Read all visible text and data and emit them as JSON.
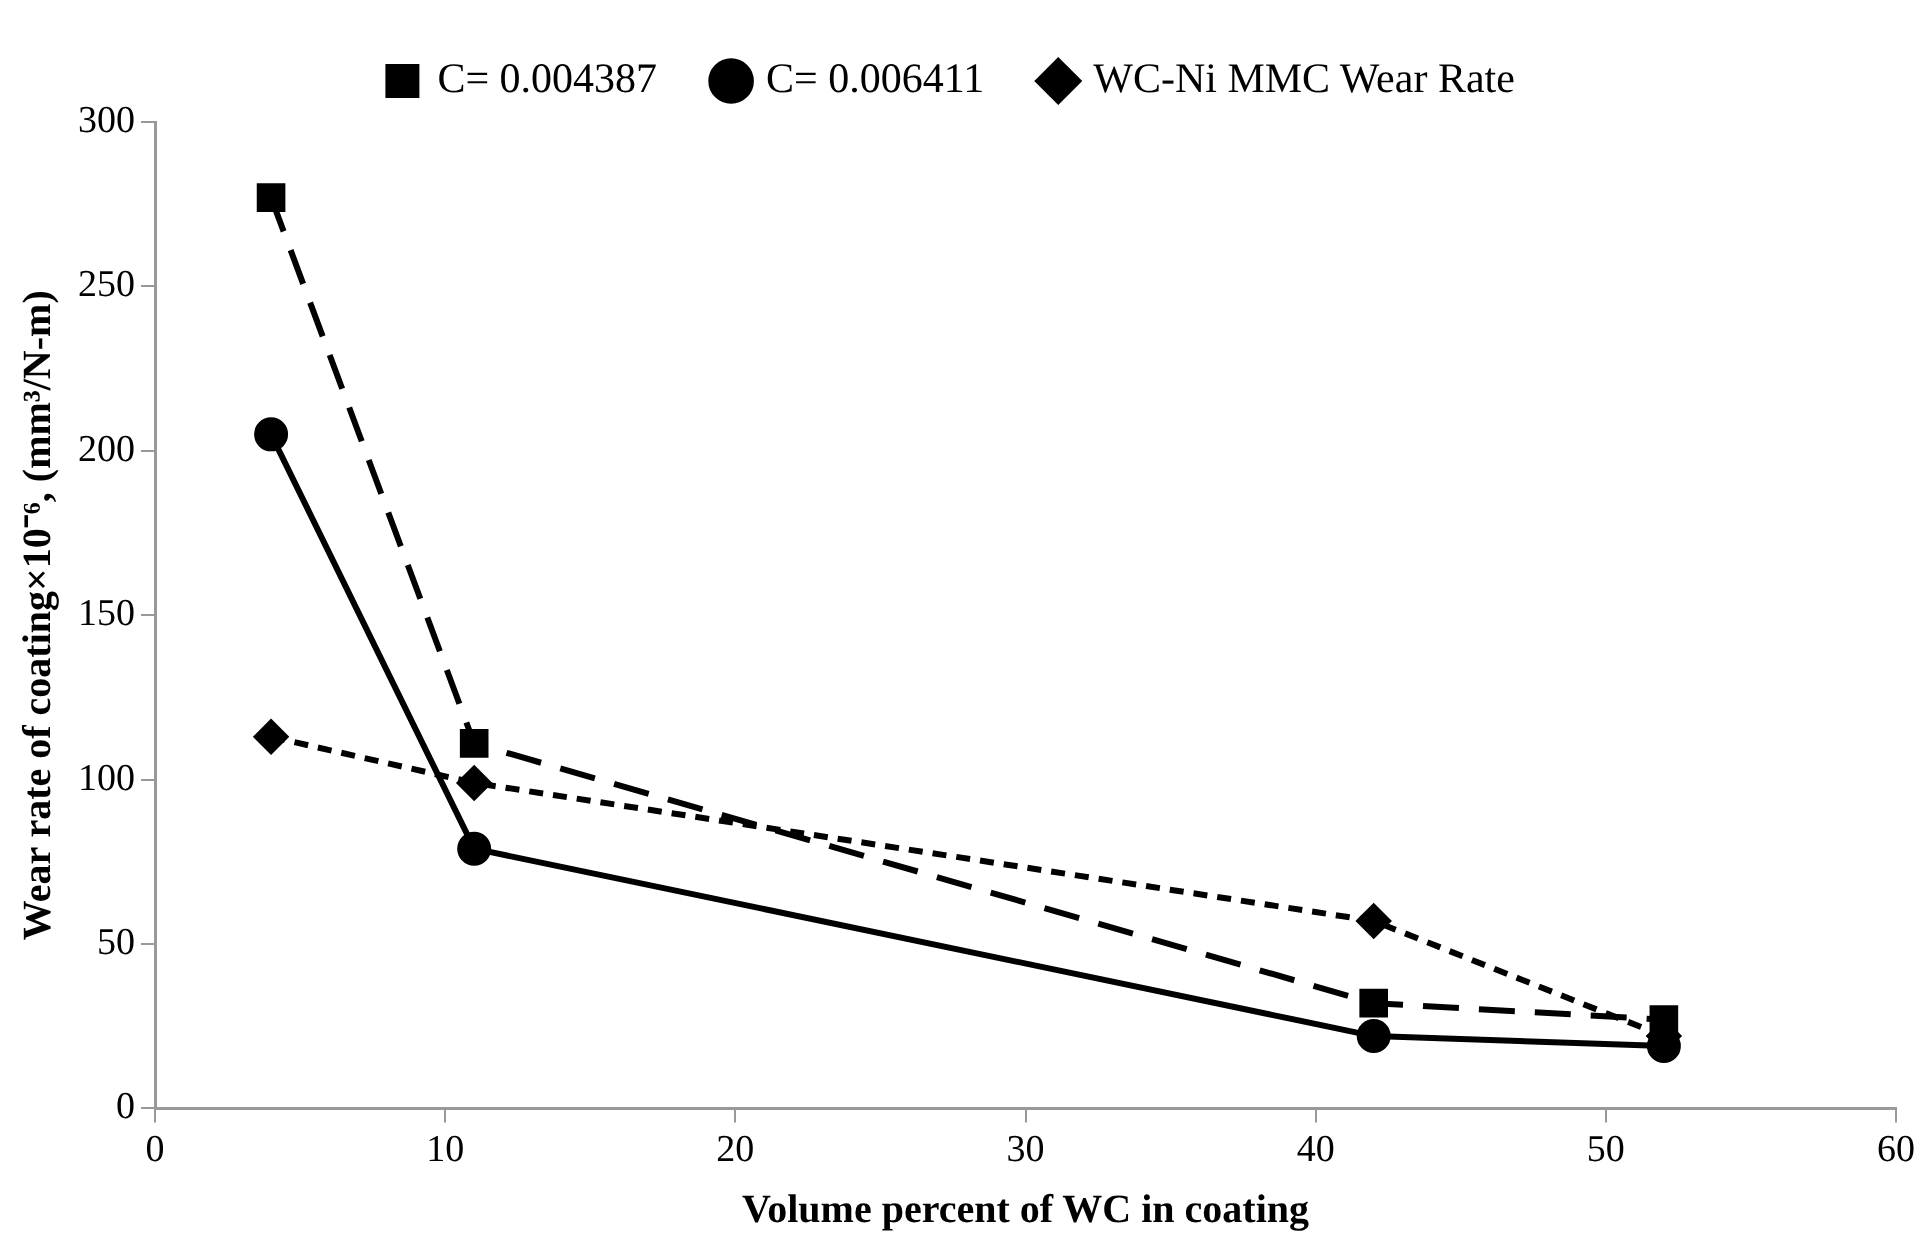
{
  "chart_data": {
    "type": "line",
    "xlabel": "Volume percent of WC in coating",
    "ylabel": "Wear rate of coating×10⁻⁶, (mm³/N-m)",
    "x": [
      4,
      11,
      42,
      52
    ],
    "series": [
      {
        "name": "C= 0.004387",
        "color": "#000000",
        "values": [
          277,
          111,
          32,
          27
        ],
        "marker": "square",
        "line_style": "dashed"
      },
      {
        "name": "C= 0.006411",
        "color": "#000000",
        "values": [
          205,
          79,
          22,
          19
        ],
        "marker": "circle",
        "line_style": "solid"
      },
      {
        "name": "WC-Ni MMC Wear Rate",
        "color": "#000000",
        "values": [
          113,
          99,
          57,
          22
        ],
        "marker": "diamond",
        "line_style": "dotted"
      }
    ],
    "xlim": [
      0,
      60
    ],
    "xticks": [
      0,
      10,
      20,
      30,
      40,
      50,
      60
    ],
    "ylim": [
      0,
      300
    ],
    "yticks": [
      0,
      50,
      100,
      150,
      200,
      250,
      300
    ],
    "grid": false,
    "legend": "top"
  }
}
